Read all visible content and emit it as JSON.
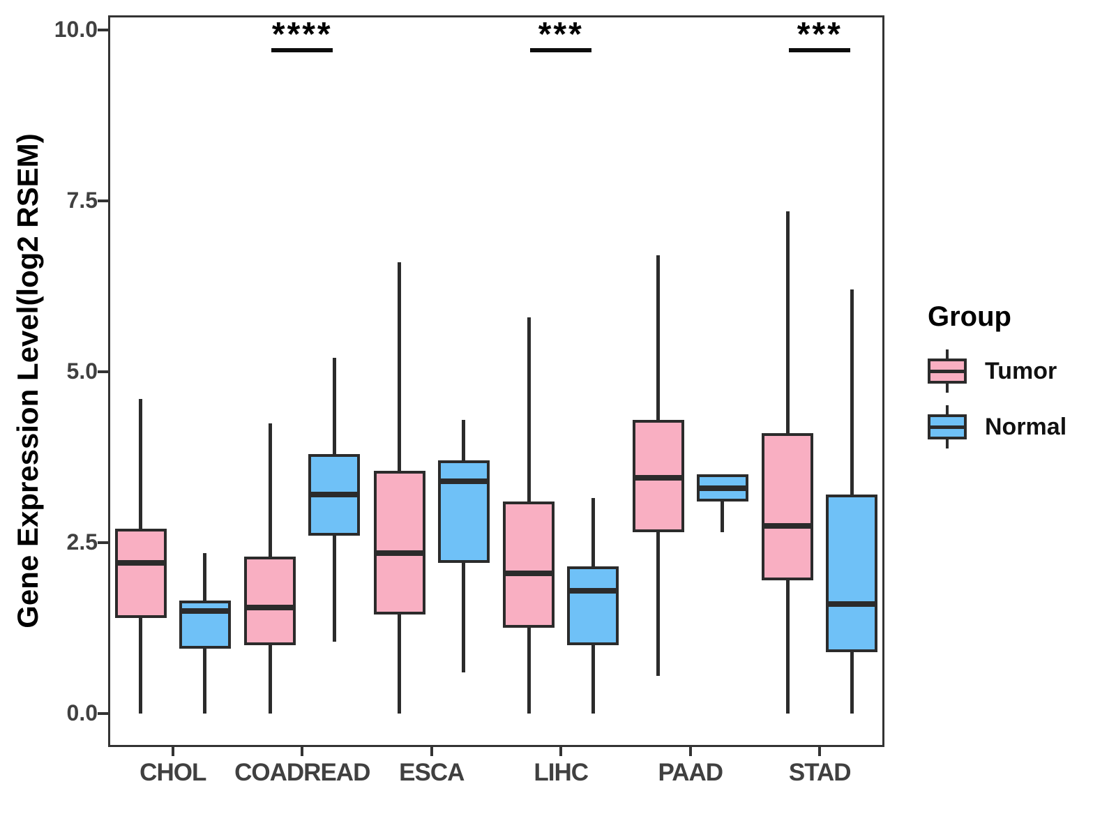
{
  "chart_data": {
    "type": "boxplot",
    "title": "",
    "xlabel": "",
    "ylabel": "Gene Expression Level(log2 RSEM)",
    "ylim": [
      -0.5,
      10.2
    ],
    "grid": false,
    "yticks": [
      {
        "value": 10.0,
        "label": "10.0"
      },
      {
        "value": 7.5,
        "label": "7.5"
      },
      {
        "value": 5.0,
        "label": "5.0"
      },
      {
        "value": 2.5,
        "label": "2.5"
      },
      {
        "value": 0.0,
        "label": "0.0"
      }
    ],
    "categories": [
      "CHOL",
      "COADREAD",
      "ESCA",
      "LIHC",
      "PAAD",
      "STAD"
    ],
    "series": [
      {
        "name": "Tumor",
        "color": "#F9AFC2",
        "boxes": [
          {
            "low": 0.0,
            "q1": 1.4,
            "median": 2.2,
            "q3": 2.7,
            "high": 4.6
          },
          {
            "low": 0.0,
            "q1": 1.0,
            "median": 1.55,
            "q3": 2.3,
            "high": 4.25
          },
          {
            "low": 0.0,
            "q1": 1.45,
            "median": 2.35,
            "q3": 3.55,
            "high": 6.6
          },
          {
            "low": 0.0,
            "q1": 1.25,
            "median": 2.05,
            "q3": 3.1,
            "high": 5.8
          },
          {
            "low": 0.55,
            "q1": 2.65,
            "median": 3.45,
            "q3": 4.3,
            "high": 6.7
          },
          {
            "low": 0.0,
            "q1": 1.95,
            "median": 2.75,
            "q3": 4.1,
            "high": 7.35
          }
        ]
      },
      {
        "name": "Normal",
        "color": "#6FC1F7",
        "boxes": [
          {
            "low": 0.0,
            "q1": 0.95,
            "median": 1.5,
            "q3": 1.65,
            "high": 2.35
          },
          {
            "low": 1.05,
            "q1": 2.6,
            "median": 3.2,
            "q3": 3.8,
            "high": 5.2
          },
          {
            "low": 0.6,
            "q1": 2.2,
            "median": 3.4,
            "q3": 3.7,
            "high": 4.3
          },
          {
            "low": 0.0,
            "q1": 1.0,
            "median": 1.8,
            "q3": 2.15,
            "high": 3.15
          },
          {
            "low": 2.65,
            "q1": 3.1,
            "median": 3.3,
            "q3": 3.5,
            "high": 3.5
          },
          {
            "low": 0.0,
            "q1": 0.9,
            "median": 1.6,
            "q3": 3.2,
            "high": 6.2
          }
        ]
      }
    ],
    "significance": [
      {
        "category": "COADREAD",
        "label": "****"
      },
      {
        "category": "LIHC",
        "label": "***"
      },
      {
        "category": "STAD",
        "label": "***"
      }
    ],
    "legend": {
      "title": "Group",
      "position": "right",
      "entries": [
        {
          "label": "Tumor",
          "color": "#F9AFC2"
        },
        {
          "label": "Normal",
          "color": "#6FC1F7"
        }
      ]
    },
    "colors": {
      "box_border": "#2b2b2b",
      "panel_border": "#333333",
      "axis_text": "#404040",
      "axis_title": "#000000"
    }
  }
}
